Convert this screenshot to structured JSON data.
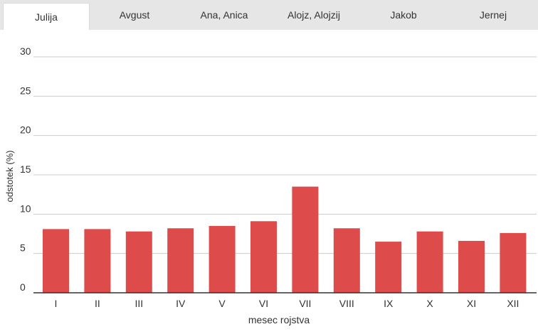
{
  "tabs": [
    {
      "label": "Julija",
      "active": true
    },
    {
      "label": "Avgust",
      "active": false
    },
    {
      "label": "Ana, Anica",
      "active": false
    },
    {
      "label": "Alojz, Alojzij",
      "active": false
    },
    {
      "label": "Jakob",
      "active": false
    },
    {
      "label": "Jernej",
      "active": false
    }
  ],
  "chart_data": {
    "type": "bar",
    "categories": [
      "I",
      "II",
      "III",
      "IV",
      "V",
      "VI",
      "VII",
      "VIII",
      "IX",
      "X",
      "XI",
      "XII"
    ],
    "values": [
      8.1,
      8.1,
      7.8,
      8.2,
      8.5,
      9.1,
      13.5,
      8.2,
      6.5,
      7.8,
      6.6,
      7.6
    ],
    "xlabel": "mesec rojstva",
    "ylabel": "odstotek (%)",
    "ylim": [
      0,
      30
    ],
    "yticks": [
      0,
      5,
      10,
      15,
      20,
      25,
      30
    ],
    "grid": true,
    "bar_color": "#dd4b4b"
  }
}
